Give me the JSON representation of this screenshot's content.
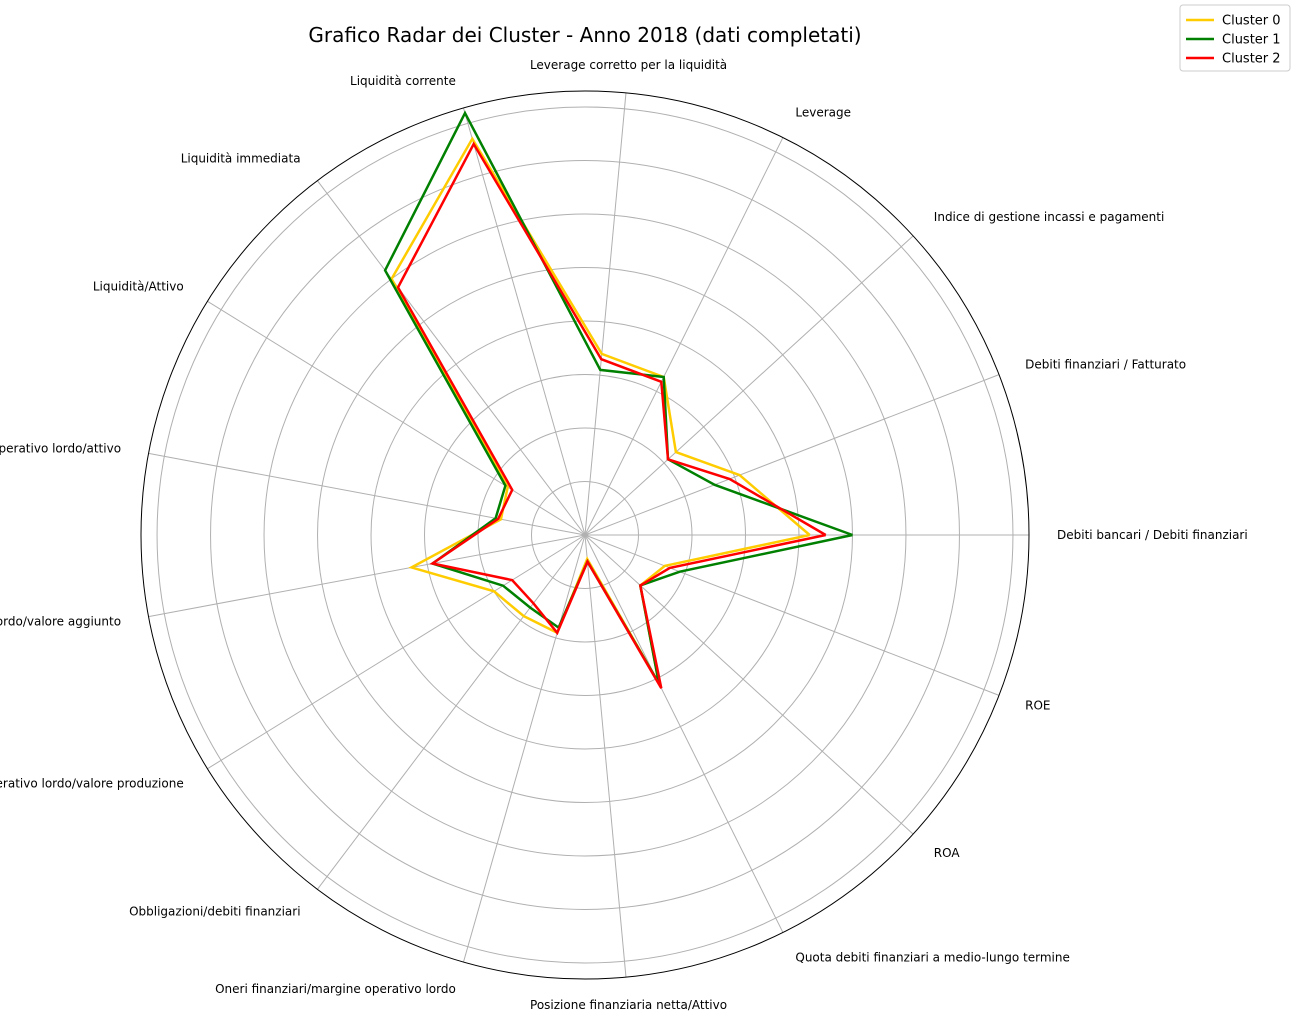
{
  "chart_data": {
    "type": "radar",
    "title": "Grafico Radar dei Cluster - Anno 2018 (dati completati)",
    "axes": [
      "Debiti bancari / Debiti finanziari",
      "Debiti finanziari / Fatturato",
      "Indice di gestione incassi e pagamenti",
      "Leverage",
      "Leverage corretto per la liquidità",
      "Liquidità corrente",
      "Liquidità immediata",
      "Liquidità/Attivo",
      "Margine operativo lordo/attivo",
      "Margine operativo lordo/valore aggiunto",
      "Margine operativo lordo/valore produzione",
      "Obbligazioni/debiti finanziari",
      "Oneri finanziari/margine operativo lordo",
      "Posizione finanziaria netta/Attivo",
      "Quota debiti finanziari a medio-lungo termine",
      "ROA",
      "ROE"
    ],
    "rlim": [
      0,
      8.3
    ],
    "grid_rings": [
      1,
      2,
      3,
      4,
      5,
      6,
      7,
      8
    ],
    "grid": true,
    "legend_position": "top-right",
    "series": [
      {
        "name": "Cluster 0",
        "color": "#ffcc00",
        "values": [
          4.2,
          3.1,
          2.3,
          3.3,
          3.4,
          7.7,
          6.0,
          1.7,
          1.6,
          3.3,
          2.0,
          1.9,
          1.9,
          0.45,
          3.1,
          1.4,
          1.6
        ]
      },
      {
        "name": "Cluster 1",
        "color": "#008000",
        "values": [
          5.0,
          2.6,
          2.1,
          3.3,
          3.1,
          8.2,
          6.2,
          1.75,
          1.7,
          2.9,
          1.8,
          1.7,
          1.8,
          0.5,
          3.1,
          1.4,
          1.9
        ]
      },
      {
        "name": "Cluster 2",
        "color": "#ff0000",
        "values": [
          4.5,
          2.9,
          2.1,
          3.2,
          3.3,
          7.6,
          5.8,
          1.6,
          1.65,
          2.9,
          1.6,
          1.6,
          1.9,
          0.5,
          3.2,
          1.4,
          1.7
        ]
      }
    ]
  }
}
